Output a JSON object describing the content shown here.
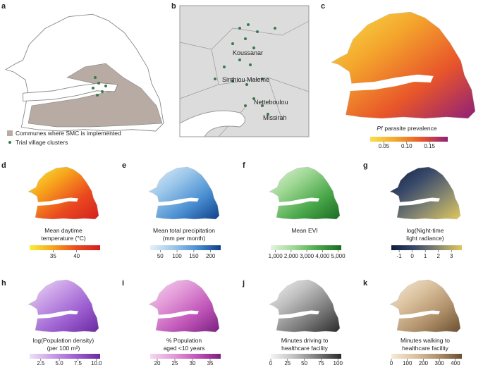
{
  "panels": [
    {
      "letter": "a",
      "legend": [
        "Communes where SMC is implemented",
        "Trial village clusters"
      ]
    },
    {
      "letter": "b",
      "places": [
        "Koussanar",
        "Sinthiou Maleme",
        "Netteboulou",
        "Missirah"
      ]
    },
    {
      "letter": "c",
      "title_italic": "Pf",
      "title": [
        "parasite prevalence"
      ],
      "colors": [
        "#f7e04a",
        "#f4a52c",
        "#e8552a",
        "#8f1f78"
      ],
      "lim": [
        0.02,
        0.19
      ],
      "ticks": [
        0.05,
        {
          "value": 0.1,
          "label": "0.10"
        },
        0.15
      ]
    },
    {
      "letter": "d",
      "title": [
        "Mean daytime",
        "temperature (°C)"
      ],
      "colors": [
        "#f6f03a",
        "#f7a21c",
        "#ea4a1f",
        "#d41f1f"
      ],
      "lim": [
        30,
        45
      ],
      "ticks": [
        35,
        40
      ]
    },
    {
      "letter": "e",
      "title": [
        "Mean total precipitation",
        "(mm per month)"
      ],
      "colors": [
        "#e6f0fa",
        "#9cc7ea",
        "#4a8fd2",
        "#0e3f8a"
      ],
      "lim": [
        20,
        230
      ],
      "ticks": [
        50,
        100,
        150,
        200
      ]
    },
    {
      "letter": "f",
      "title": [
        "Mean EVI"
      ],
      "colors": [
        "#e3f3df",
        "#9ed793",
        "#4aa84a",
        "#1a6a22"
      ],
      "lim": [
        700,
        5200
      ],
      "ticks": [
        {
          "value": 1000,
          "label": "1,000"
        },
        {
          "value": 2000,
          "label": "2,000"
        },
        {
          "value": 3000,
          "label": "3,000"
        },
        {
          "value": 4000,
          "label": "4,000"
        },
        {
          "value": 5000,
          "label": "5,000"
        }
      ]
    },
    {
      "letter": "g",
      "title": [
        "log(Night-time",
        "light radiance)"
      ],
      "colors": [
        "#0f1d3f",
        "#3a4a6a",
        "#8a8a70",
        "#e0c85a"
      ],
      "lim": [
        -1.6,
        3.8
      ],
      "ticks": [
        -1,
        0,
        1,
        2,
        3
      ]
    },
    {
      "letter": "h",
      "title": [
        "log(Population density)",
        "(per 100 m²)"
      ],
      "colors": [
        "#eee0f6",
        "#c79be6",
        "#9b5dd0",
        "#6a2aa0"
      ],
      "lim": [
        1,
        10.5
      ],
      "ticks": [
        2.5,
        {
          "value": 5,
          "label": "5.0"
        },
        7.5,
        {
          "value": 10,
          "label": "10.0"
        }
      ]
    },
    {
      "letter": "i",
      "title": [
        "% Population",
        "aged <10 years"
      ],
      "colors": [
        "#f4d8f0",
        "#e39ad8",
        "#c055b8",
        "#7a2080"
      ],
      "lim": [
        18,
        38
      ],
      "ticks": [
        20,
        25,
        30,
        35
      ]
    },
    {
      "letter": "j",
      "title": [
        "Minutes driving to",
        "healthcare facility"
      ],
      "colors": [
        "#f4f4f4",
        "#c0c0c0",
        "#7a7a7a",
        "#2a2a2a"
      ],
      "lim": [
        0,
        105
      ],
      "ticks": [
        0,
        25,
        50,
        75,
        100
      ]
    },
    {
      "letter": "k",
      "title": [
        "Minutes walking to",
        "healthcare facility"
      ],
      "colors": [
        "#f6ead8",
        "#dcc3a0",
        "#b0906a",
        "#6a5030"
      ],
      "lim": [
        0,
        440
      ],
      "ticks": [
        0,
        100,
        200,
        300,
        400
      ]
    }
  ]
}
